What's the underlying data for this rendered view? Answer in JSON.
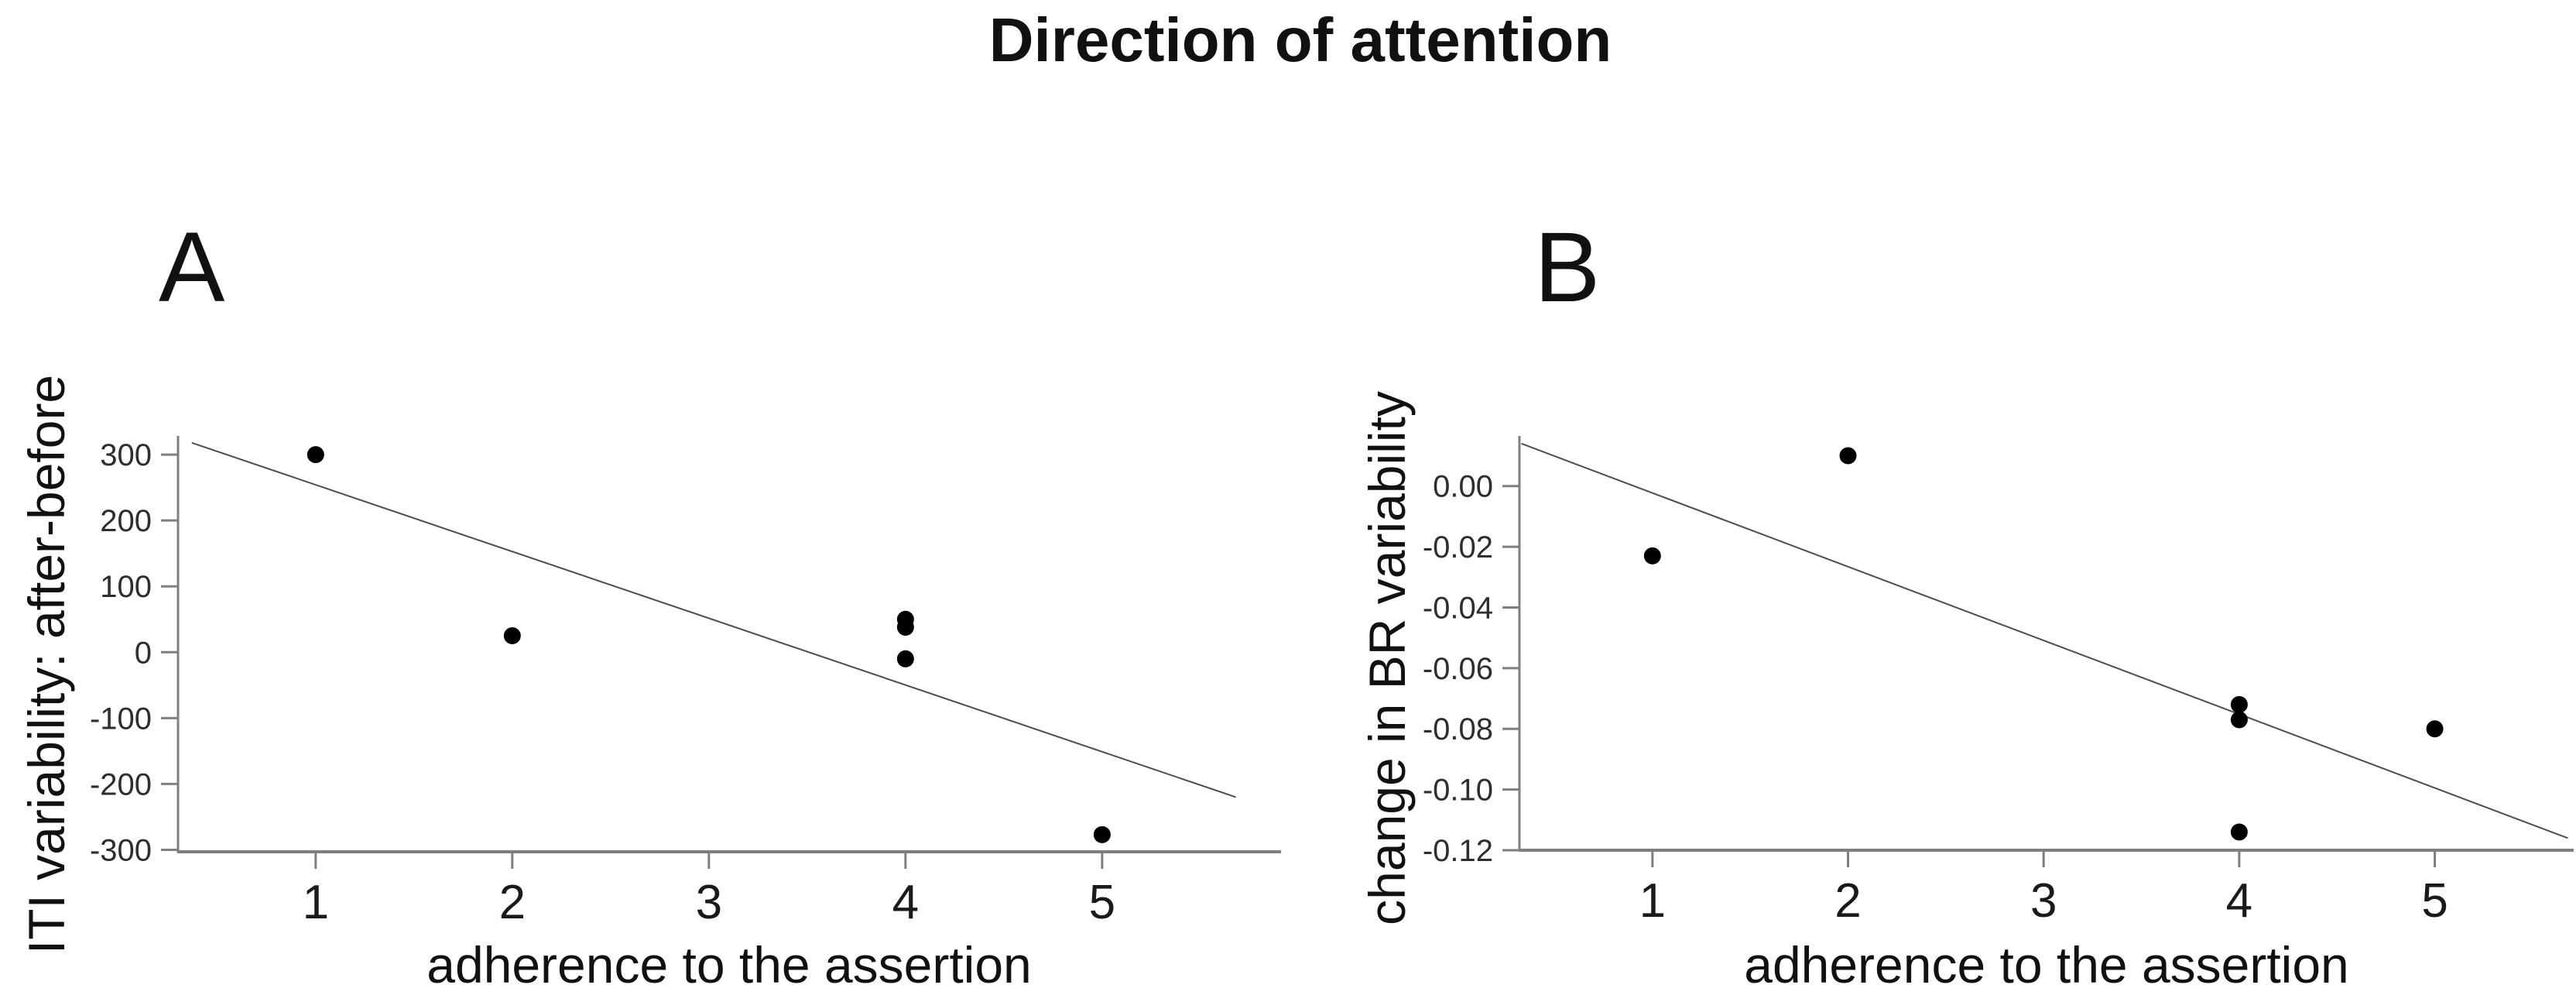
{
  "figure": {
    "title": "Direction of attention",
    "panels": [
      {
        "letter": "A"
      },
      {
        "letter": "B"
      }
    ],
    "colors": {
      "background": "#ffffff",
      "axis": "#7f7f7f",
      "point": "#000000",
      "fit_line": "#4d4d4d",
      "text": "#1a1a1a",
      "tick_label": "#2e2e2e"
    }
  },
  "chart_data": [
    {
      "type": "scatter",
      "panel": "A",
      "title": "",
      "xlabel": "adherence to the assertion",
      "ylabel": "ITI variability: after-before",
      "x_ticks": [
        1,
        2,
        3,
        4,
        5
      ],
      "x_tick_labels": [
        "1",
        "2",
        "3",
        "4",
        "5"
      ],
      "y_ticks": [
        300,
        200,
        100,
        0,
        -100,
        -200,
        -300
      ],
      "y_tick_labels": [
        "300",
        "200",
        "100",
        "0",
        "-100",
        "-200",
        "-300"
      ],
      "xlim": [
        0.3,
        5.91
      ],
      "ylim": [
        -303,
        326
      ],
      "grid": false,
      "legend": "none",
      "points": [
        [
          1,
          300
        ],
        [
          2,
          25
        ],
        [
          4,
          50
        ],
        [
          4,
          38
        ],
        [
          4,
          -10
        ],
        [
          5,
          -277
        ]
      ],
      "fit_line": {
        "x1": 0.37,
        "y1": 318,
        "x2": 5.68,
        "y2": -220
      }
    },
    {
      "type": "scatter",
      "panel": "B",
      "title": "",
      "xlabel": "adherence to the assertion",
      "ylabel": "change in BR variability",
      "x_ticks": [
        1,
        2,
        3,
        4,
        5
      ],
      "x_tick_labels": [
        "1",
        "2",
        "3",
        "4",
        "5"
      ],
      "y_ticks": [
        0.0,
        -0.02,
        -0.04,
        -0.06,
        -0.08,
        -0.1,
        -0.12
      ],
      "y_tick_labels": [
        "0.00",
        "-0.02",
        "-0.04",
        "-0.06",
        "-0.08",
        "-0.10",
        "-0.12"
      ],
      "xlim": [
        0.32,
        5.71
      ],
      "ylim": [
        -0.12,
        0.016
      ],
      "grid": false,
      "legend": "none",
      "points": [
        [
          1,
          -0.023
        ],
        [
          2,
          0.01
        ],
        [
          4,
          -0.072
        ],
        [
          4,
          -0.077
        ],
        [
          4,
          -0.114
        ],
        [
          5,
          -0.08
        ]
      ],
      "fit_line": {
        "x1": 0.33,
        "y1": 0.014,
        "x2": 5.68,
        "y2": -0.116
      }
    }
  ]
}
